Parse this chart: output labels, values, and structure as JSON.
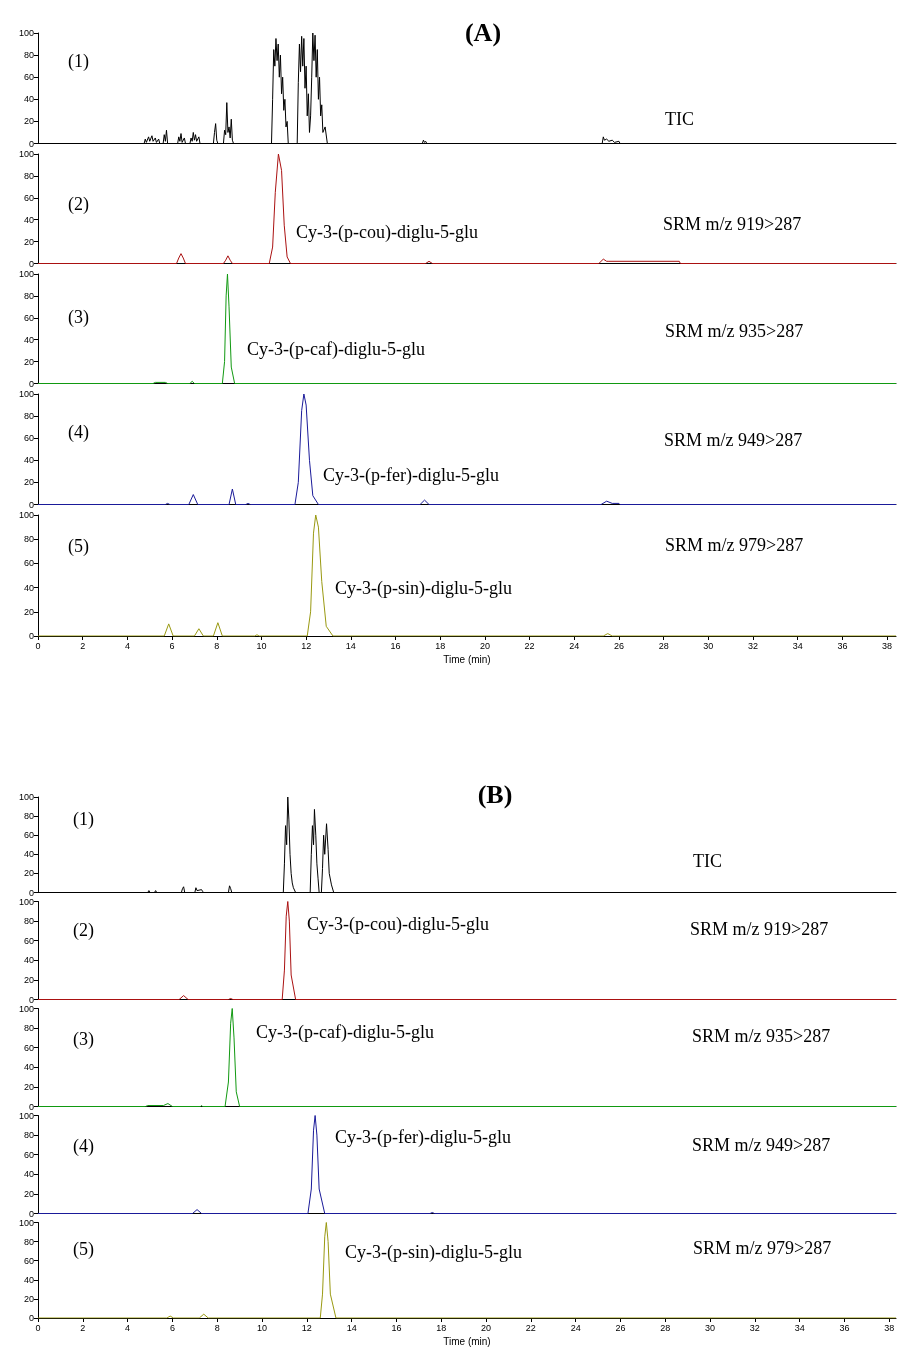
{
  "chart_data": [
    {
      "type": "line",
      "title": "(A)",
      "annotations": [
        "(1)",
        "TIC"
      ],
      "xlim": [
        0,
        38.4
      ],
      "ylim": [
        0,
        100
      ],
      "yticks": [
        0,
        20,
        40,
        60,
        80,
        100
      ],
      "tick_labels": "y",
      "series": [
        {
          "color": "#000000",
          "x": [
            0,
            4.75,
            4.8,
            4.85,
            4.95,
            5.0,
            5.1,
            5.15,
            5.25,
            5.3,
            5.4,
            5.45,
            5.6,
            5.65,
            5.7,
            5.75,
            5.8,
            6.25,
            6.3,
            6.35,
            6.4,
            6.45,
            6.55,
            6.6,
            6.8,
            6.85,
            6.9,
            6.95,
            7.0,
            7.05,
            7.1,
            7.2,
            7.25,
            7.85,
            7.9,
            7.95,
            8.0,
            8.05,
            8.3,
            8.35,
            8.4,
            8.45,
            8.5,
            8.55,
            8.6,
            8.65,
            8.7,
            8.75,
            10.45,
            10.5,
            10.55,
            10.6,
            10.65,
            10.7,
            10.75,
            10.8,
            10.85,
            10.9,
            10.95,
            11.0,
            11.05,
            11.1,
            11.15,
            11.2,
            11.6,
            11.65,
            11.7,
            11.75,
            11.8,
            11.85,
            11.9,
            11.95,
            12.0,
            12.05,
            12.1,
            12.15,
            12.2,
            12.25,
            12.3,
            12.35,
            12.4,
            12.45,
            12.5,
            12.55,
            12.6,
            12.65,
            12.7,
            12.75,
            12.85,
            12.95,
            17.2,
            17.25,
            17.3,
            17.35,
            17.4,
            25.25,
            25.3,
            25.35,
            25.45,
            25.55,
            25.7,
            25.8,
            26.0,
            26.05,
            38.4
          ],
          "values": [
            0,
            0,
            4,
            1,
            6,
            2,
            7,
            2,
            5,
            1,
            4,
            0,
            0,
            8,
            2,
            12,
            0,
            0,
            6,
            2,
            9,
            1,
            5,
            0,
            0,
            5,
            2,
            10,
            3,
            8,
            2,
            6,
            0,
            0,
            10,
            18,
            3,
            0,
            0,
            12,
            8,
            37,
            10,
            15,
            5,
            22,
            3,
            0,
            0,
            40,
            85,
            70,
            95,
            75,
            90,
            60,
            80,
            45,
            60,
            30,
            40,
            15,
            20,
            0,
            0,
            55,
            90,
            65,
            97,
            70,
            95,
            50,
            70,
            25,
            45,
            10,
            25,
            60,
            100,
            75,
            98,
            60,
            85,
            40,
            60,
            25,
            35,
            10,
            15,
            0,
            0,
            3,
            1,
            2,
            0,
            0,
            6,
            3,
            4,
            2,
            3,
            1,
            2,
            0,
            0
          ]
        }
      ]
    },
    {
      "type": "line",
      "annotations": [
        "(2)",
        "Cy-3-(p-cou)-diglu-5-glu",
        "SRM m/z 919>287"
      ],
      "xlim": [
        0,
        38.4
      ],
      "ylim": [
        0,
        100
      ],
      "yticks": [
        0,
        20,
        40,
        60,
        80,
        100
      ],
      "tick_labels": "y",
      "series": [
        {
          "color": "#aa1111",
          "x": [
            0,
            6.2,
            6.3,
            6.4,
            6.5,
            6.6,
            8.3,
            8.4,
            8.5,
            8.6,
            8.7,
            10.35,
            10.5,
            10.62,
            10.76,
            10.9,
            11.02,
            11.15,
            11.3,
            17.35,
            17.5,
            17.65,
            25.1,
            25.3,
            25.45,
            25.55,
            28.7,
            28.75,
            38.4
          ],
          "values": [
            0,
            0,
            5,
            9,
            5,
            0,
            0,
            3,
            7,
            3,
            0,
            0,
            15,
            65,
            100,
            85,
            35,
            6,
            0,
            0,
            2,
            0,
            0,
            4,
            2,
            2,
            2,
            0,
            0
          ]
        }
      ]
    },
    {
      "type": "line",
      "annotations": [
        "(3)",
        "Cy-3-(p-caf)-diglu-5-glu",
        "SRM m/z 935>287"
      ],
      "xlim": [
        0,
        38.4
      ],
      "ylim": [
        0,
        100
      ],
      "yticks": [
        0,
        20,
        40,
        60,
        80,
        100
      ],
      "tick_labels": "y",
      "series": [
        {
          "color": "#119911",
          "x": [
            0,
            5.15,
            5.25,
            5.7,
            5.8,
            6.8,
            6.9,
            7.0,
            8.25,
            8.35,
            8.42,
            8.48,
            8.55,
            8.65,
            8.8,
            38.4
          ],
          "values": [
            0,
            0,
            1,
            1,
            0,
            0,
            2,
            0,
            0,
            20,
            80,
            100,
            70,
            15,
            0,
            0
          ]
        }
      ]
    },
    {
      "type": "line",
      "annotations": [
        "(4)",
        "Cy-3-(p-fer)-diglu-5-glu",
        "SRM m/z 949>287"
      ],
      "xlim": [
        0,
        38.4
      ],
      "ylim": [
        0,
        100
      ],
      "yticks": [
        0,
        20,
        40,
        60,
        80,
        100
      ],
      "tick_labels": "y",
      "series": [
        {
          "color": "#1a1a99",
          "x": [
            0,
            5.7,
            5.8,
            5.9,
            6.75,
            6.95,
            7.15,
            8.55,
            8.7,
            8.85,
            9.3,
            9.4,
            9.5,
            11.5,
            11.65,
            11.8,
            11.9,
            12.0,
            12.15,
            12.3,
            12.55,
            17.1,
            17.3,
            17.5,
            25.2,
            25.45,
            25.7,
            26.0,
            26.05,
            38.4
          ],
          "values": [
            0,
            0,
            1,
            0,
            0,
            9,
            0,
            0,
            14,
            0,
            0,
            1,
            0,
            0,
            20,
            85,
            100,
            90,
            40,
            8,
            0,
            0,
            4,
            0,
            0,
            3,
            1,
            1,
            0,
            0
          ]
        }
      ]
    },
    {
      "type": "line",
      "xlabel": "Time (min)",
      "annotations": [
        "(5)",
        "Cy-3-(p-sin)-diglu-5-glu",
        "SRM m/z 979>287"
      ],
      "xlim": [
        0,
        38.4
      ],
      "xticks": [
        0,
        2,
        4,
        6,
        8,
        10,
        12,
        14,
        16,
        18,
        20,
        22,
        24,
        26,
        28,
        30,
        32,
        34,
        36,
        38
      ],
      "ylim": [
        0,
        100
      ],
      "yticks": [
        0,
        20,
        40,
        60,
        80,
        100
      ],
      "series": [
        {
          "color": "#999911",
          "x": [
            0,
            5.65,
            5.85,
            6.05,
            7.0,
            7.2,
            7.4,
            7.85,
            8.05,
            8.25,
            9.7,
            9.8,
            9.9,
            12.05,
            12.2,
            12.33,
            12.43,
            12.55,
            12.7,
            12.9,
            13.2,
            25.3,
            25.5,
            25.7,
            38.4
          ],
          "values": [
            0,
            0,
            10,
            0,
            0,
            6,
            0,
            0,
            11,
            0,
            0,
            1,
            0,
            0,
            20,
            85,
            100,
            90,
            45,
            8,
            0,
            0,
            2,
            0,
            0
          ]
        }
      ]
    },
    {
      "type": "line",
      "title": "(B)",
      "annotations": [
        "(1)",
        "TIC"
      ],
      "xlim": [
        0,
        38.3
      ],
      "ylim": [
        0,
        100
      ],
      "yticks": [
        0,
        20,
        40,
        60,
        80,
        100
      ],
      "tick_labels": "y",
      "series": [
        {
          "color": "#000000",
          "x": [
            0,
            4.9,
            4.95,
            5.0,
            5.2,
            5.25,
            5.3,
            6.4,
            6.45,
            6.5,
            6.55,
            7.0,
            7.05,
            7.1,
            7.3,
            7.35,
            7.4,
            8.5,
            8.55,
            8.6,
            8.65,
            10.95,
            11.0,
            11.05,
            11.1,
            11.15,
            11.2,
            11.25,
            11.3,
            11.35,
            11.4,
            11.5,
            12.15,
            12.2,
            12.25,
            12.3,
            12.34,
            12.4,
            12.45,
            12.5,
            12.55,
            12.65,
            12.7,
            12.75,
            12.8,
            12.88,
            12.95,
            13.0,
            13.1,
            13.2,
            38.3
          ],
          "values": [
            0,
            0,
            2,
            0,
            0,
            2,
            0,
            0,
            4,
            6,
            0,
            0,
            5,
            2,
            3,
            1,
            0,
            0,
            7,
            4,
            0,
            0,
            30,
            70,
            50,
            100,
            76,
            40,
            20,
            10,
            5,
            0,
            0,
            40,
            70,
            50,
            87,
            60,
            30,
            15,
            0,
            0,
            25,
            60,
            40,
            72,
            45,
            20,
            8,
            0,
            0
          ]
        }
      ]
    },
    {
      "type": "line",
      "annotations": [
        "(2)",
        "Cy-3-(p-cou)-diglu-5-glu",
        "SRM m/z 919>287"
      ],
      "xlim": [
        0,
        38.3
      ],
      "ylim": [
        0,
        100
      ],
      "yticks": [
        0,
        20,
        40,
        60,
        80,
        100
      ],
      "tick_labels": "y",
      "series": [
        {
          "color": "#aa1111",
          "x": [
            0,
            6.3,
            6.5,
            6.7,
            8.5,
            8.6,
            8.7,
            10.9,
            11.0,
            11.08,
            11.15,
            11.22,
            11.3,
            11.5,
            38.3
          ],
          "values": [
            0,
            0,
            4,
            0,
            0,
            1,
            0,
            0,
            30,
            85,
            100,
            80,
            25,
            0,
            0
          ]
        }
      ]
    },
    {
      "type": "line",
      "annotations": [
        "(3)",
        "Cy-3-(p-caf)-diglu-5-glu",
        "SRM m/z 935>287"
      ],
      "xlim": [
        0,
        38.3
      ],
      "ylim": [
        0,
        100
      ],
      "yticks": [
        0,
        20,
        40,
        60,
        80,
        100
      ],
      "tick_labels": "y",
      "series": [
        {
          "color": "#119911",
          "x": [
            0,
            4.8,
            4.9,
            5.6,
            5.8,
            6.0,
            7.25,
            7.3,
            7.35,
            8.35,
            8.5,
            8.6,
            8.67,
            8.75,
            8.85,
            9.0,
            38.3
          ],
          "values": [
            0,
            0,
            1,
            1,
            3,
            0,
            0,
            1,
            0,
            0,
            25,
            85,
            100,
            70,
            15,
            0,
            0
          ]
        }
      ]
    },
    {
      "type": "line",
      "annotations": [
        "(4)",
        "Cy-3-(p-fer)-diglu-5-glu",
        "SRM m/z 949>287"
      ],
      "xlim": [
        0,
        38.3
      ],
      "ylim": [
        0,
        100
      ],
      "yticks": [
        0,
        20,
        40,
        60,
        80,
        100
      ],
      "tick_labels": "y",
      "series": [
        {
          "color": "#1a1a99",
          "x": [
            0,
            6.9,
            7.1,
            7.3,
            12.05,
            12.2,
            12.3,
            12.37,
            12.45,
            12.55,
            12.8,
            17.5,
            17.6,
            17.7,
            38.3
          ],
          "values": [
            0,
            0,
            4,
            0,
            0,
            25,
            85,
            100,
            80,
            25,
            0,
            0,
            1,
            0,
            0
          ]
        }
      ]
    },
    {
      "type": "line",
      "xlabel": "Time (min)",
      "annotations": [
        "(5)",
        "Cy-3-(p-sin)-diglu-5-glu",
        "SRM m/z 979>287"
      ],
      "xlim": [
        0,
        38.3
      ],
      "xticks": [
        0,
        2,
        4,
        6,
        8,
        10,
        12,
        14,
        16,
        18,
        20,
        22,
        24,
        26,
        28,
        30,
        32,
        34,
        36,
        38
      ],
      "ylim": [
        0,
        100
      ],
      "yticks": [
        0,
        20,
        40,
        60,
        80,
        100
      ],
      "series": [
        {
          "color": "#999911",
          "x": [
            0,
            5.75,
            5.9,
            6.05,
            7.2,
            7.4,
            7.6,
            12.6,
            12.7,
            12.8,
            12.87,
            12.95,
            13.05,
            13.3,
            38.3
          ],
          "values": [
            0,
            0,
            2,
            0,
            0,
            4,
            0,
            0,
            25,
            85,
            100,
            80,
            25,
            0,
            0
          ]
        }
      ]
    }
  ]
}
